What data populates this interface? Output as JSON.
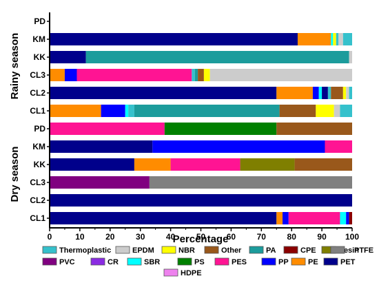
{
  "chart_data": {
    "type": "bar",
    "orientation": "horizontal",
    "stacked": true,
    "xlabel": "Percentage",
    "xlim": [
      0,
      100
    ],
    "xticks": [
      "0",
      "10",
      "20",
      "30",
      "40",
      "50",
      "60",
      "70",
      "80",
      "90",
      "100"
    ],
    "groups": [
      {
        "name": "Rainy season",
        "categories": [
          "PD",
          "KM",
          "KK",
          "CL3",
          "CL2",
          "CL1"
        ]
      },
      {
        "name": "Dry season",
        "categories": [
          "PD",
          "KM",
          "KK",
          "CL3",
          "CL2",
          "CL1"
        ]
      }
    ],
    "legend": [
      {
        "name": "Thermoplastic",
        "color": "#35c1cc"
      },
      {
        "name": "EPDM",
        "color": "#cccccc"
      },
      {
        "name": "NBR",
        "color": "#ffff00"
      },
      {
        "name": "Other",
        "color": "#99581b"
      },
      {
        "name": "PA",
        "color": "#1c9c9c"
      },
      {
        "name": "CPE",
        "color": "#8b0000"
      },
      {
        "name": "Resin",
        "color": "#7f7f00"
      },
      {
        "name": "PTFE",
        "color": "#808080"
      },
      {
        "name": "PVC",
        "color": "#800080"
      },
      {
        "name": "CR",
        "color": "#8a2be2"
      },
      {
        "name": "SBR",
        "color": "#00ffff"
      },
      {
        "name": "PS",
        "color": "#008000"
      },
      {
        "name": "PES",
        "color": "#ff1493"
      },
      {
        "name": "PP",
        "color": "#0000ff"
      },
      {
        "name": "PE",
        "color": "#ff8c00"
      },
      {
        "name": "PET",
        "color": "#00008b"
      },
      {
        "name": "HDPE",
        "color": "#ee82ee"
      }
    ],
    "bars": [
      {
        "group": "Rainy season",
        "label": "PD",
        "segments": []
      },
      {
        "group": "Rainy season",
        "label": "KM",
        "segments": [
          {
            "name": "PET",
            "value": 82
          },
          {
            "name": "PE",
            "value": 11
          },
          {
            "name": "SBR",
            "value": 0.7
          },
          {
            "name": "NBR",
            "value": 1
          },
          {
            "name": "Thermoplastic",
            "value": 0.8
          },
          {
            "name": "EPDM",
            "value": 1.5
          },
          {
            "name": "Thermoplastic",
            "value": 3
          }
        ]
      },
      {
        "group": "Rainy season",
        "label": "KK",
        "segments": [
          {
            "name": "PET",
            "value": 12
          },
          {
            "name": "PA",
            "value": 87
          },
          {
            "name": "EPDM",
            "value": 1
          }
        ]
      },
      {
        "group": "Rainy season",
        "label": "CL3",
        "segments": [
          {
            "name": "PE",
            "value": 5
          },
          {
            "name": "PP",
            "value": 4
          },
          {
            "name": "PES",
            "value": 38
          },
          {
            "name": "Thermoplastic",
            "value": 1
          },
          {
            "name": "PA",
            "value": 1
          },
          {
            "name": "Other",
            "value": 2
          },
          {
            "name": "NBR",
            "value": 2
          },
          {
            "name": "EPDM",
            "value": 47
          }
        ]
      },
      {
        "group": "Rainy season",
        "label": "CL2",
        "segments": [
          {
            "name": "PET",
            "value": 75
          },
          {
            "name": "PE",
            "value": 12
          },
          {
            "name": "PP",
            "value": 2
          },
          {
            "name": "SBR",
            "value": 1
          },
          {
            "name": "PET",
            "value": 2
          },
          {
            "name": "Thermoplastic",
            "value": 1
          },
          {
            "name": "Other",
            "value": 4
          },
          {
            "name": "NBR",
            "value": 1
          },
          {
            "name": "EPDM",
            "value": 1
          },
          {
            "name": "Thermoplastic",
            "value": 1
          }
        ]
      },
      {
        "group": "Rainy season",
        "label": "CL1",
        "segments": [
          {
            "name": "PE",
            "value": 17
          },
          {
            "name": "PP",
            "value": 8
          },
          {
            "name": "SBR",
            "value": 1
          },
          {
            "name": "Thermoplastic",
            "value": 2
          },
          {
            "name": "PA",
            "value": 48
          },
          {
            "name": "Other",
            "value": 12
          },
          {
            "name": "NBR",
            "value": 6
          },
          {
            "name": "EPDM",
            "value": 2
          },
          {
            "name": "Thermoplastic",
            "value": 4
          }
        ]
      },
      {
        "group": "Dry season",
        "label": "PD",
        "segments": [
          {
            "name": "PES",
            "value": 38
          },
          {
            "name": "PS",
            "value": 37
          },
          {
            "name": "Other",
            "value": 25
          }
        ]
      },
      {
        "group": "Dry season",
        "label": "KM",
        "segments": [
          {
            "name": "PET",
            "value": 34
          },
          {
            "name": "PP",
            "value": 57
          },
          {
            "name": "PES",
            "value": 9
          }
        ]
      },
      {
        "group": "Dry season",
        "label": "KK",
        "segments": [
          {
            "name": "PET",
            "value": 28
          },
          {
            "name": "PE",
            "value": 12
          },
          {
            "name": "PES",
            "value": 23
          },
          {
            "name": "Resin",
            "value": 18
          },
          {
            "name": "Other",
            "value": 19
          }
        ]
      },
      {
        "group": "Dry season",
        "label": "CL3",
        "segments": [
          {
            "name": "PVC",
            "value": 33
          },
          {
            "name": "PTFE",
            "value": 67
          }
        ]
      },
      {
        "group": "Dry season",
        "label": "CL2",
        "segments": [
          {
            "name": "PET",
            "value": 100
          }
        ]
      },
      {
        "group": "Dry season",
        "label": "CL1",
        "segments": [
          {
            "name": "PET",
            "value": 75
          },
          {
            "name": "PE",
            "value": 2
          },
          {
            "name": "PP",
            "value": 2
          },
          {
            "name": "PES",
            "value": 17
          },
          {
            "name": "SBR",
            "value": 2
          },
          {
            "name": "PP",
            "value": 1
          },
          {
            "name": "CPE",
            "value": 1
          }
        ]
      }
    ]
  }
}
